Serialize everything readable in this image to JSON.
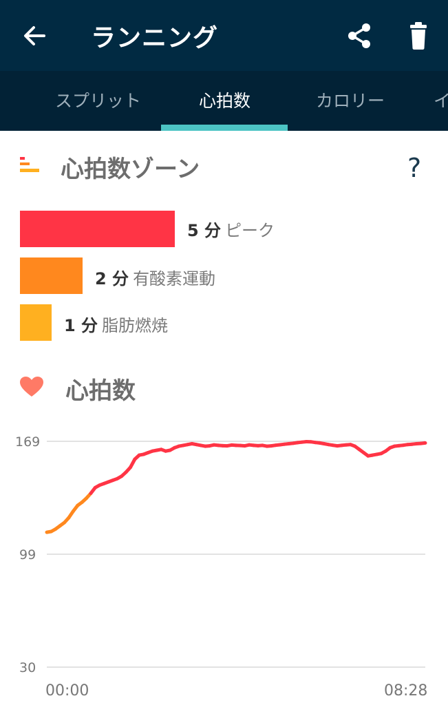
{
  "appbar": {
    "title": "ランニング",
    "icons": [
      "arrow-back-icon",
      "share-icon",
      "trash-icon"
    ]
  },
  "tabs": [
    {
      "label": "スプリット",
      "active": false
    },
    {
      "label": "心拍数",
      "active": true
    },
    {
      "label": "カロリー",
      "active": false
    },
    {
      "label": "イ",
      "active": false
    }
  ],
  "zones": {
    "title": "心拍数ゾーン",
    "help": "?",
    "items": [
      {
        "minutes": "5 分",
        "name": "ピーク",
        "color": "#ff3445",
        "value": 5
      },
      {
        "minutes": "2 分",
        "name": "有酸素運動",
        "color": "#ff881e",
        "value": 2
      },
      {
        "minutes": "1 分",
        "name": "脂肪燃焼",
        "color": "#ffb020",
        "value": 1
      }
    ]
  },
  "heartrate": {
    "title": "心拍数",
    "chart_data": {
      "type": "line",
      "y_ticks": [
        "169",
        "99",
        "30"
      ],
      "ylim": [
        30,
        169
      ],
      "x_ticks": [
        "00:00",
        "08:28"
      ],
      "series": [
        {
          "values": [
            113,
            113.5,
            115,
            117,
            119,
            122,
            126,
            129.5,
            131.5,
            134,
            137,
            140.5,
            142,
            143,
            144,
            145,
            146,
            147.5,
            150,
            153,
            158,
            160.5,
            161,
            162,
            163,
            163.5,
            164,
            163,
            163.5,
            165,
            166,
            166.5,
            167,
            167.5,
            167,
            166.5,
            166,
            166.2,
            166.8,
            166.5,
            166.3,
            166.2,
            166.7,
            166.5,
            166.4,
            166.2,
            166.8,
            166.5,
            166.3,
            166.5,
            166,
            166.2,
            166.6,
            166.9,
            167.2,
            167.5,
            167.8,
            168.2,
            168.5,
            168.8,
            168.7,
            168.3,
            168,
            167.5,
            167,
            166.6,
            166.2,
            166.5,
            166.8,
            167,
            166,
            164,
            162,
            160,
            160.5,
            161,
            161.5,
            163,
            165,
            166,
            166.3,
            166.6,
            167,
            167.2,
            167.5,
            167.7,
            168
          ]
        }
      ]
    }
  }
}
